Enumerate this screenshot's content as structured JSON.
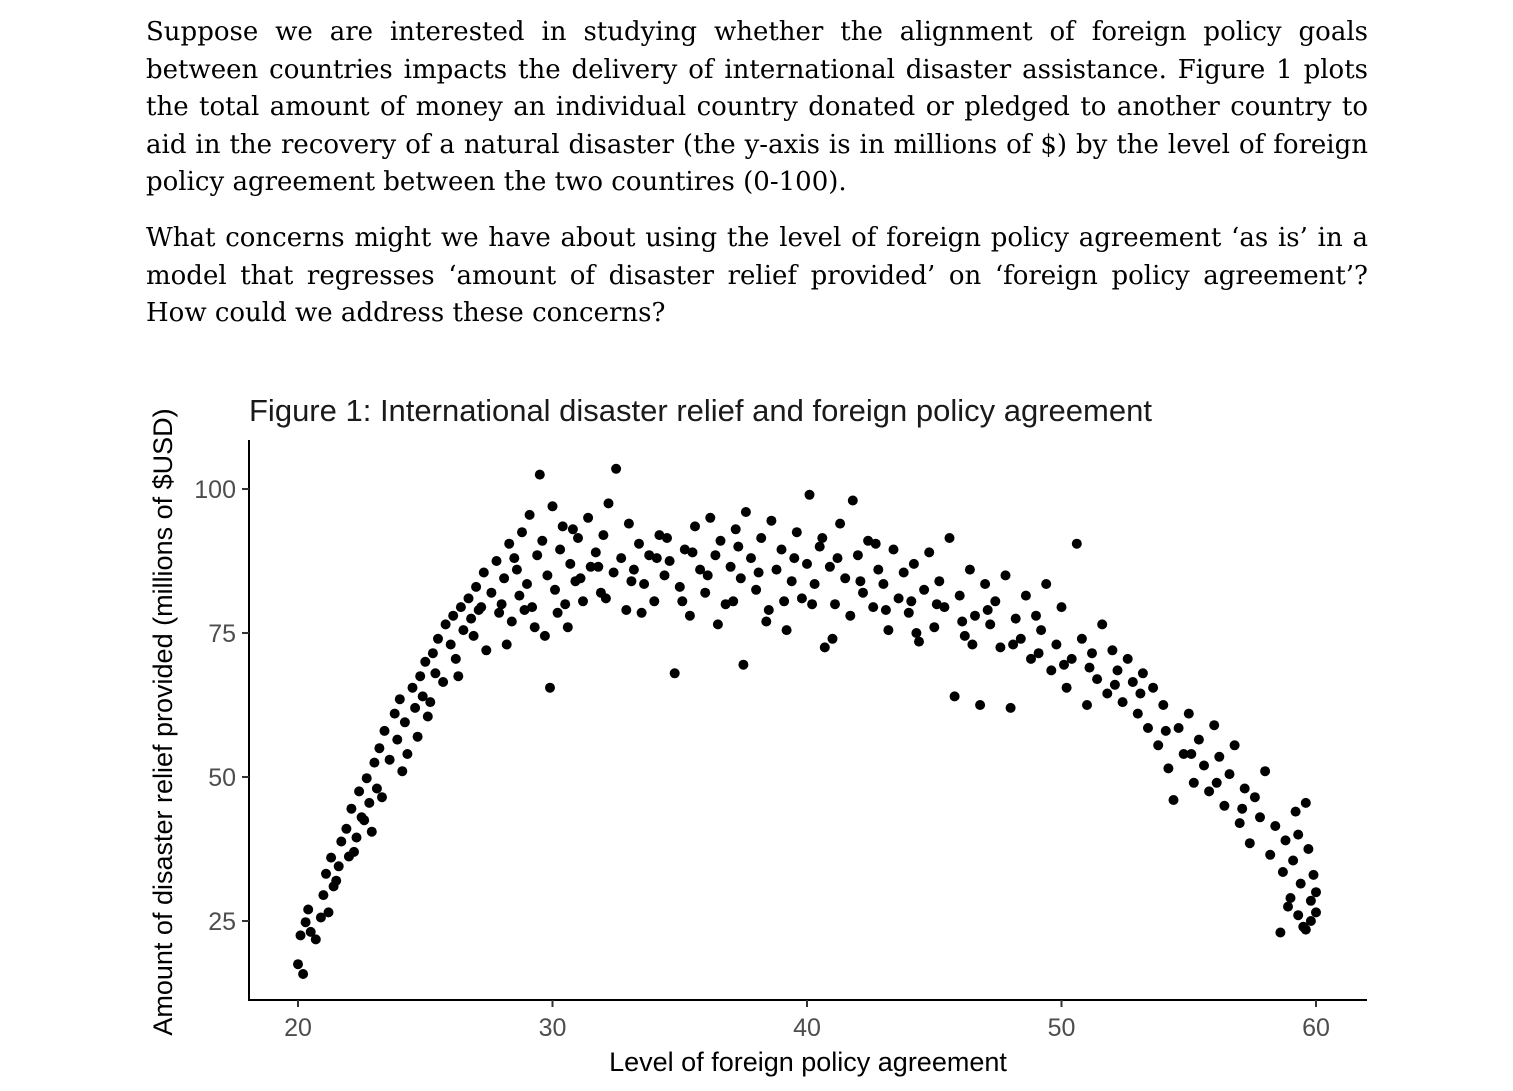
{
  "question": {
    "paragraph_1": "Suppose we are interested in studying whether the alignment of foreign policy goals between countries impacts the delivery of international disaster assistance. Figure 1 plots the total amount of money an individual country donated or pledged to another country to aid in the recovery of a natural disaster (the y-axis is in millions of $) by the level of foreign policy agreement between the two countires (0-100).",
    "paragraph_2": "What concerns might we have about using the level of foreign policy agreement ‘as is’ in a model that regresses ‘amount of disaster relief provided’ on ‘foreign policy agreement’? How could we address these concerns?"
  },
  "chart_data": {
    "type": "scatter",
    "title": "Figure 1: International disaster relief and foreign policy agreement",
    "xlabel": "Level of foreign policy agreement",
    "ylabel": "Amount of disaster relief provided (millions of $USD)",
    "xlim": [
      18,
      62
    ],
    "ylim": [
      12,
      108
    ],
    "x_ticks": [
      20,
      30,
      40,
      50,
      60
    ],
    "y_ticks": [
      25,
      50,
      75,
      100
    ],
    "grid": false,
    "legend": "none",
    "point_color": "#000000",
    "points": [
      [
        20.0,
        17.5
      ],
      [
        20.2,
        15.8
      ],
      [
        20.1,
        22.5
      ],
      [
        20.3,
        24.8
      ],
      [
        20.5,
        23.1
      ],
      [
        20.4,
        27.0
      ],
      [
        20.7,
        21.8
      ],
      [
        20.9,
        25.6
      ],
      [
        21.0,
        29.5
      ],
      [
        21.1,
        33.2
      ],
      [
        21.3,
        36.0
      ],
      [
        21.4,
        31.0
      ],
      [
        21.2,
        26.5
      ],
      [
        21.6,
        34.5
      ],
      [
        21.7,
        38.8
      ],
      [
        21.9,
        41.0
      ],
      [
        22.0,
        36.2
      ],
      [
        22.1,
        44.5
      ],
      [
        22.3,
        39.5
      ],
      [
        22.4,
        47.5
      ],
      [
        22.5,
        43.0
      ],
      [
        22.7,
        49.8
      ],
      [
        22.8,
        45.5
      ],
      [
        22.9,
        40.5
      ],
      [
        23.0,
        52.5
      ],
      [
        23.2,
        55.0
      ],
      [
        23.1,
        48.0
      ],
      [
        23.4,
        58.0
      ],
      [
        23.6,
        53.0
      ],
      [
        23.8,
        61.0
      ],
      [
        23.9,
        56.5
      ],
      [
        24.0,
        63.5
      ],
      [
        24.2,
        59.5
      ],
      [
        24.3,
        54.0
      ],
      [
        24.5,
        65.5
      ],
      [
        24.6,
        62.0
      ],
      [
        24.8,
        67.5
      ],
      [
        24.9,
        64.0
      ],
      [
        25.0,
        70.0
      ],
      [
        25.1,
        60.5
      ],
      [
        25.3,
        71.5
      ],
      [
        25.4,
        68.0
      ],
      [
        25.5,
        74.0
      ],
      [
        25.7,
        66.5
      ],
      [
        25.8,
        76.5
      ],
      [
        26.0,
        73.0
      ],
      [
        26.1,
        78.0
      ],
      [
        26.2,
        70.5
      ],
      [
        26.4,
        79.5
      ],
      [
        26.5,
        75.5
      ],
      [
        26.7,
        81.0
      ],
      [
        26.8,
        77.5
      ],
      [
        27.0,
        83.0
      ],
      [
        27.1,
        79.0
      ],
      [
        27.3,
        85.5
      ],
      [
        27.4,
        72.0
      ],
      [
        27.6,
        82.0
      ],
      [
        27.8,
        87.5
      ],
      [
        28.0,
        80.0
      ],
      [
        28.1,
        84.5
      ],
      [
        28.3,
        90.5
      ],
      [
        28.4,
        77.0
      ],
      [
        28.6,
        86.0
      ],
      [
        28.8,
        92.5
      ],
      [
        29.0,
        83.5
      ],
      [
        29.1,
        95.5
      ],
      [
        29.2,
        79.5
      ],
      [
        29.4,
        88.5
      ],
      [
        29.5,
        102.5
      ],
      [
        29.6,
        91.0
      ],
      [
        29.8,
        85.0
      ],
      [
        29.9,
        65.5
      ],
      [
        30.0,
        97.0
      ],
      [
        30.1,
        82.5
      ],
      [
        30.3,
        89.5
      ],
      [
        30.4,
        93.5
      ],
      [
        30.6,
        76.0
      ],
      [
        30.7,
        87.0
      ],
      [
        30.9,
        84.0
      ],
      [
        31.0,
        91.5
      ],
      [
        31.2,
        80.5
      ],
      [
        31.4,
        95.0
      ],
      [
        31.5,
        86.5
      ],
      [
        31.7,
        89.0
      ],
      [
        31.9,
        82.0
      ],
      [
        32.0,
        92.0
      ],
      [
        32.2,
        97.5
      ],
      [
        32.4,
        85.5
      ],
      [
        32.5,
        103.5
      ],
      [
        32.7,
        88.0
      ],
      [
        32.9,
        79.0
      ],
      [
        33.0,
        94.0
      ],
      [
        33.2,
        86.0
      ],
      [
        33.4,
        90.5
      ],
      [
        33.6,
        83.5
      ],
      [
        33.8,
        88.5
      ],
      [
        34.0,
        80.5
      ],
      [
        34.2,
        92.0
      ],
      [
        34.4,
        85.0
      ],
      [
        34.6,
        87.5
      ],
      [
        34.8,
        68.0
      ],
      [
        35.0,
        83.0
      ],
      [
        35.2,
        89.5
      ],
      [
        35.4,
        78.0
      ],
      [
        35.6,
        93.5
      ],
      [
        35.8,
        86.0
      ],
      [
        36.0,
        82.0
      ],
      [
        36.2,
        95.0
      ],
      [
        36.4,
        88.5
      ],
      [
        36.6,
        91.0
      ],
      [
        36.8,
        80.0
      ],
      [
        37.0,
        86.5
      ],
      [
        37.2,
        93.0
      ],
      [
        37.4,
        84.5
      ],
      [
        37.5,
        69.5
      ],
      [
        37.6,
        96.0
      ],
      [
        37.8,
        88.0
      ],
      [
        38.0,
        82.5
      ],
      [
        38.2,
        91.5
      ],
      [
        38.4,
        77.0
      ],
      [
        38.6,
        94.5
      ],
      [
        38.8,
        86.0
      ],
      [
        39.0,
        89.5
      ],
      [
        39.2,
        75.5
      ],
      [
        39.4,
        84.0
      ],
      [
        39.6,
        92.5
      ],
      [
        39.8,
        81.0
      ],
      [
        40.0,
        87.0
      ],
      [
        40.1,
        99.0
      ],
      [
        40.3,
        83.5
      ],
      [
        40.5,
        90.0
      ],
      [
        40.7,
        72.5
      ],
      [
        40.9,
        86.5
      ],
      [
        41.1,
        80.0
      ],
      [
        41.3,
        94.0
      ],
      [
        41.5,
        84.5
      ],
      [
        41.7,
        78.0
      ],
      [
        41.8,
        98.0
      ],
      [
        42.0,
        88.5
      ],
      [
        42.2,
        82.0
      ],
      [
        42.4,
        91.0
      ],
      [
        42.6,
        79.5
      ],
      [
        42.8,
        86.0
      ],
      [
        43.0,
        83.5
      ],
      [
        43.2,
        75.5
      ],
      [
        43.4,
        89.5
      ],
      [
        43.6,
        81.0
      ],
      [
        43.8,
        85.5
      ],
      [
        44.0,
        78.5
      ],
      [
        44.2,
        87.0
      ],
      [
        44.4,
        73.5
      ],
      [
        44.6,
        82.5
      ],
      [
        44.8,
        89.0
      ],
      [
        45.0,
        76.0
      ],
      [
        45.2,
        84.0
      ],
      [
        45.4,
        79.5
      ],
      [
        45.6,
        91.5
      ],
      [
        45.8,
        64.0
      ],
      [
        46.0,
        81.5
      ],
      [
        46.2,
        74.5
      ],
      [
        46.4,
        86.0
      ],
      [
        46.6,
        78.0
      ],
      [
        46.8,
        62.5
      ],
      [
        47.0,
        83.5
      ],
      [
        47.2,
        76.5
      ],
      [
        47.4,
        80.5
      ],
      [
        47.6,
        72.5
      ],
      [
        47.8,
        85.0
      ],
      [
        48.0,
        62.0
      ],
      [
        48.2,
        77.5
      ],
      [
        48.4,
        74.0
      ],
      [
        48.6,
        81.5
      ],
      [
        48.8,
        70.5
      ],
      [
        49.0,
        78.0
      ],
      [
        49.2,
        75.5
      ],
      [
        49.4,
        83.5
      ],
      [
        49.6,
        68.5
      ],
      [
        49.8,
        73.0
      ],
      [
        50.0,
        79.5
      ],
      [
        50.2,
        65.5
      ],
      [
        50.4,
        70.5
      ],
      [
        50.6,
        90.5
      ],
      [
        50.8,
        74.0
      ],
      [
        51.0,
        62.5
      ],
      [
        51.2,
        71.5
      ],
      [
        51.4,
        67.0
      ],
      [
        51.6,
        76.5
      ],
      [
        51.8,
        64.5
      ],
      [
        52.0,
        72.0
      ],
      [
        52.2,
        68.5
      ],
      [
        52.4,
        63.0
      ],
      [
        52.6,
        70.5
      ],
      [
        52.8,
        66.5
      ],
      [
        53.0,
        61.0
      ],
      [
        53.2,
        68.0
      ],
      [
        53.4,
        58.5
      ],
      [
        53.6,
        65.5
      ],
      [
        53.8,
        55.5
      ],
      [
        54.0,
        62.5
      ],
      [
        54.2,
        51.5
      ],
      [
        54.4,
        46.0
      ],
      [
        54.6,
        58.5
      ],
      [
        54.8,
        54.0
      ],
      [
        55.0,
        61.0
      ],
      [
        55.2,
        49.0
      ],
      [
        55.4,
        56.5
      ],
      [
        55.6,
        52.0
      ],
      [
        55.8,
        47.5
      ],
      [
        56.0,
        59.0
      ],
      [
        56.2,
        53.5
      ],
      [
        56.4,
        45.0
      ],
      [
        56.6,
        50.5
      ],
      [
        56.8,
        55.5
      ],
      [
        57.0,
        42.0
      ],
      [
        57.2,
        48.0
      ],
      [
        57.4,
        38.5
      ],
      [
        57.6,
        46.5
      ],
      [
        57.8,
        43.0
      ],
      [
        58.0,
        51.0
      ],
      [
        58.2,
        36.5
      ],
      [
        58.4,
        41.5
      ],
      [
        58.6,
        23.0
      ],
      [
        58.7,
        33.5
      ],
      [
        58.8,
        39.0
      ],
      [
        59.0,
        29.0
      ],
      [
        59.1,
        35.5
      ],
      [
        59.2,
        44.0
      ],
      [
        59.3,
        26.0
      ],
      [
        59.4,
        31.5
      ],
      [
        59.5,
        24.0
      ],
      [
        59.6,
        45.5
      ],
      [
        59.7,
        37.5
      ],
      [
        59.8,
        28.5
      ],
      [
        59.9,
        33.0
      ],
      [
        60.0,
        26.5
      ],
      [
        60.0,
        30.0
      ],
      [
        59.6,
        23.5
      ],
      [
        59.3,
        40.0
      ],
      [
        58.9,
        27.5
      ],
      [
        59.8,
        25.0
      ],
      [
        21.5,
        32.0
      ],
      [
        22.2,
        37.0
      ],
      [
        22.6,
        42.5
      ],
      [
        23.3,
        46.5
      ],
      [
        24.1,
        51.0
      ],
      [
        24.7,
        57.0
      ],
      [
        25.2,
        63.0
      ],
      [
        26.3,
        67.5
      ],
      [
        26.9,
        74.5
      ],
      [
        27.9,
        78.5
      ],
      [
        28.7,
        81.5
      ],
      [
        29.3,
        76.0
      ],
      [
        30.2,
        78.5
      ],
      [
        31.1,
        84.5
      ],
      [
        32.1,
        81.0
      ],
      [
        33.1,
        84.0
      ],
      [
        34.1,
        88.0
      ],
      [
        35.1,
        80.5
      ],
      [
        36.1,
        85.0
      ],
      [
        37.1,
        80.5
      ],
      [
        38.1,
        85.5
      ],
      [
        39.1,
        80.5
      ],
      [
        40.2,
        80.0
      ],
      [
        41.2,
        88.0
      ],
      [
        42.1,
        84.0
      ],
      [
        43.1,
        79.0
      ],
      [
        44.1,
        80.5
      ],
      [
        45.1,
        80.0
      ],
      [
        46.1,
        77.0
      ],
      [
        47.1,
        79.0
      ],
      [
        48.1,
        73.0
      ],
      [
        49.1,
        71.5
      ],
      [
        50.1,
        69.5
      ],
      [
        51.1,
        69.0
      ],
      [
        52.1,
        66.0
      ],
      [
        53.1,
        64.5
      ],
      [
        54.1,
        58.0
      ],
      [
        55.1,
        54.0
      ],
      [
        56.1,
        49.0
      ],
      [
        57.1,
        44.5
      ],
      [
        28.2,
        73.0
      ],
      [
        28.9,
        79.0
      ],
      [
        29.7,
        74.5
      ],
      [
        30.5,
        80.0
      ],
      [
        33.5,
        78.5
      ],
      [
        36.5,
        76.5
      ],
      [
        38.5,
        79.0
      ],
      [
        41.0,
        74.0
      ],
      [
        44.3,
        75.0
      ],
      [
        46.5,
        73.0
      ],
      [
        27.2,
        79.5
      ],
      [
        28.5,
        88.0
      ],
      [
        30.8,
        93.0
      ],
      [
        31.8,
        86.5
      ],
      [
        34.5,
        91.5
      ],
      [
        35.5,
        89.0
      ],
      [
        37.3,
        90.0
      ],
      [
        39.5,
        88.0
      ],
      [
        40.6,
        91.5
      ],
      [
        42.7,
        90.5
      ]
    ]
  }
}
